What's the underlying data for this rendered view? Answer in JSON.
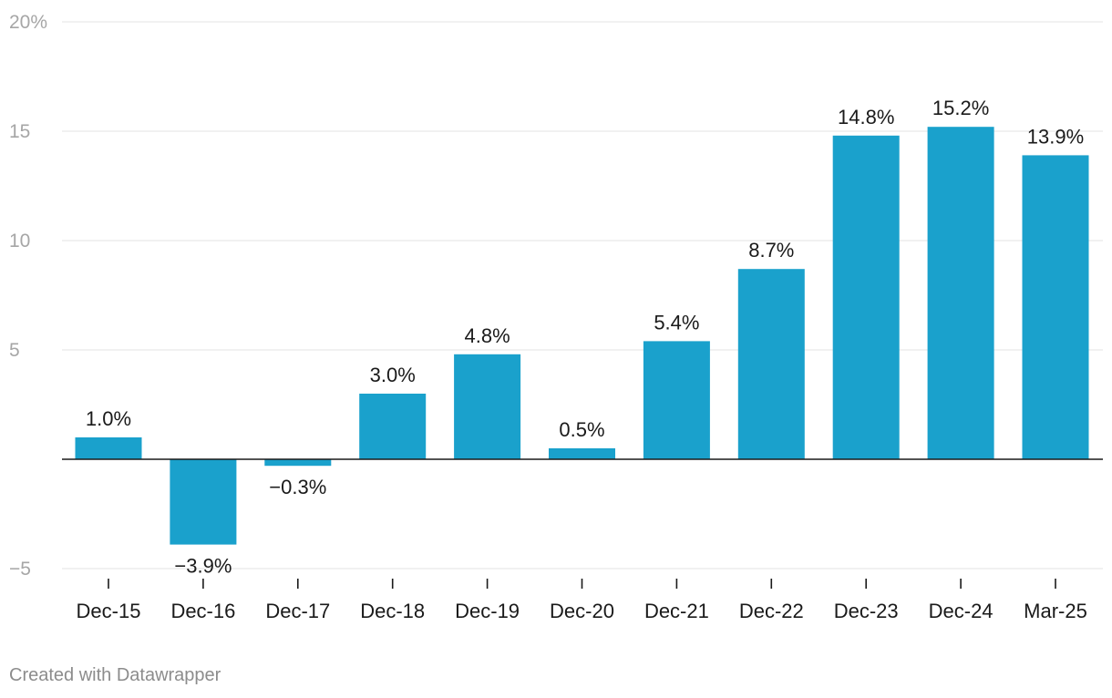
{
  "chart_data": {
    "type": "bar",
    "title": "",
    "xlabel": "",
    "ylabel": "",
    "categories": [
      "Dec-15",
      "Dec-16",
      "Dec-17",
      "Dec-18",
      "Dec-19",
      "Dec-20",
      "Dec-21",
      "Dec-22",
      "Dec-23",
      "Dec-24",
      "Mar-25"
    ],
    "values": [
      1.0,
      -3.9,
      -0.3,
      3.0,
      4.8,
      0.5,
      5.4,
      8.7,
      14.8,
      15.2,
      13.9
    ],
    "data_labels": [
      "1.0%",
      "−3.9%",
      "−0.3%",
      "3.0%",
      "4.8%",
      "0.5%",
      "5.4%",
      "8.7%",
      "14.8%",
      "15.2%",
      "13.9%"
    ],
    "ylim": [
      -5,
      20
    ],
    "y_ticks": [
      -5,
      0,
      5,
      10,
      15,
      20
    ],
    "y_tick_labels": [
      "−5",
      "",
      "5",
      "10",
      "15",
      "20%"
    ],
    "grid": true,
    "bar_color": "#1aa1cc"
  },
  "footer": {
    "credit": "Created with Datawrapper"
  }
}
